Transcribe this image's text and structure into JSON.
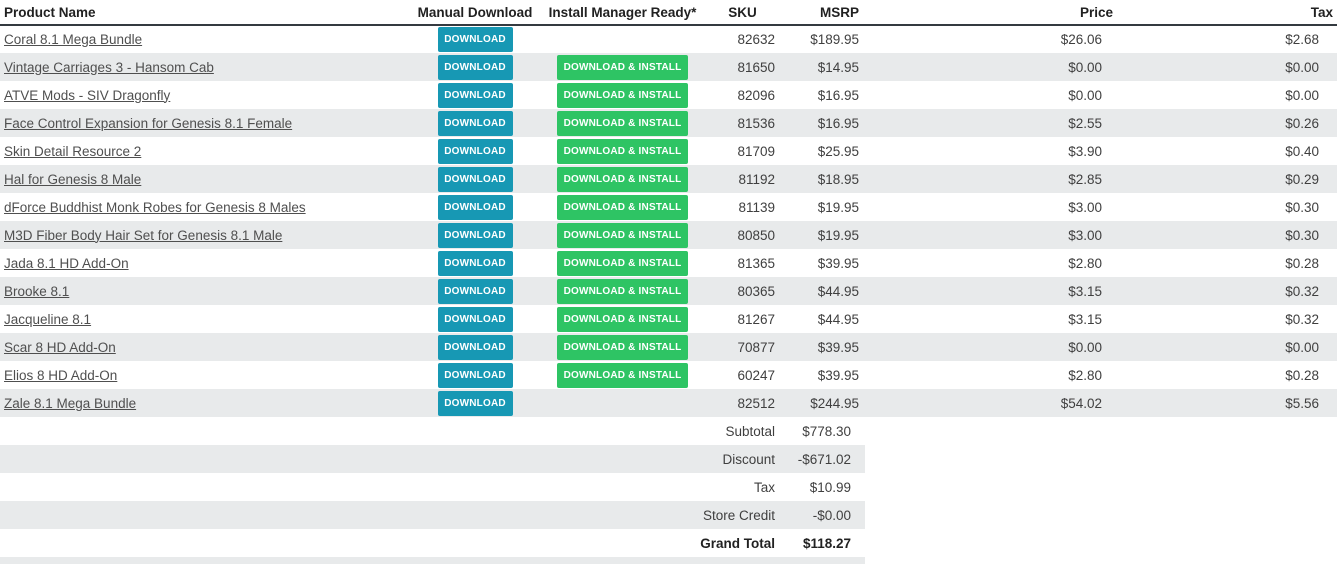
{
  "table": {
    "headers": {
      "product": "Product Name",
      "manual": "Manual Download",
      "install": "Install Manager Ready*",
      "sku": "SKU",
      "msrp": "MSRP",
      "price": "Price",
      "tax": "Tax"
    },
    "manual_button_label": "DOWNLOAD",
    "install_button_label": "DOWNLOAD & INSTALL",
    "rows": [
      {
        "product": "Coral 8.1 Mega Bundle",
        "manual_download": true,
        "install_manager": false,
        "sku": "82632",
        "msrp": "$189.95",
        "price": "$26.06",
        "tax": "$2.68"
      },
      {
        "product": "Vintage Carriages 3 - Hansom Cab",
        "manual_download": true,
        "install_manager": true,
        "sku": "81650",
        "msrp": "$14.95",
        "price": "$0.00",
        "tax": "$0.00"
      },
      {
        "product": "ATVE Mods - SIV Dragonfly",
        "manual_download": true,
        "install_manager": true,
        "sku": "82096",
        "msrp": "$16.95",
        "price": "$0.00",
        "tax": "$0.00"
      },
      {
        "product": "Face Control Expansion for Genesis 8.1 Female",
        "manual_download": true,
        "install_manager": true,
        "sku": "81536",
        "msrp": "$16.95",
        "price": "$2.55",
        "tax": "$0.26"
      },
      {
        "product": "Skin Detail Resource 2",
        "manual_download": true,
        "install_manager": true,
        "sku": "81709",
        "msrp": "$25.95",
        "price": "$3.90",
        "tax": "$0.40"
      },
      {
        "product": "Hal for Genesis 8 Male",
        "manual_download": true,
        "install_manager": true,
        "sku": "81192",
        "msrp": "$18.95",
        "price": "$2.85",
        "tax": "$0.29"
      },
      {
        "product": "dForce Buddhist Monk Robes for Genesis 8 Males",
        "manual_download": true,
        "install_manager": true,
        "sku": "81139",
        "msrp": "$19.95",
        "price": "$3.00",
        "tax": "$0.30"
      },
      {
        "product": "M3D Fiber Body Hair Set for Genesis 8.1 Male",
        "manual_download": true,
        "install_manager": true,
        "sku": "80850",
        "msrp": "$19.95",
        "price": "$3.00",
        "tax": "$0.30"
      },
      {
        "product": "Jada 8.1 HD Add-On",
        "manual_download": true,
        "install_manager": true,
        "sku": "81365",
        "msrp": "$39.95",
        "price": "$2.80",
        "tax": "$0.28"
      },
      {
        "product": "Brooke 8.1",
        "manual_download": true,
        "install_manager": true,
        "sku": "80365",
        "msrp": "$44.95",
        "price": "$3.15",
        "tax": "$0.32"
      },
      {
        "product": "Jacqueline 8.1",
        "manual_download": true,
        "install_manager": true,
        "sku": "81267",
        "msrp": "$44.95",
        "price": "$3.15",
        "tax": "$0.32"
      },
      {
        "product": "Scar 8 HD Add-On",
        "manual_download": true,
        "install_manager": true,
        "sku": "70877",
        "msrp": "$39.95",
        "price": "$0.00",
        "tax": "$0.00"
      },
      {
        "product": "Elios 8 HD Add-On",
        "manual_download": true,
        "install_manager": true,
        "sku": "60247",
        "msrp": "$39.95",
        "price": "$2.80",
        "tax": "$0.28"
      },
      {
        "product": "Zale 8.1 Mega Bundle",
        "manual_download": true,
        "install_manager": false,
        "sku": "82512",
        "msrp": "$244.95",
        "price": "$54.02",
        "tax": "$5.56"
      }
    ],
    "summary": [
      {
        "label": "Subtotal",
        "value": "$778.30",
        "bold": false
      },
      {
        "label": "Discount",
        "value": "-$671.02",
        "bold": false
      },
      {
        "label": "Tax",
        "value": "$10.99",
        "bold": false
      },
      {
        "label": "Store Credit",
        "value": "-$0.00",
        "bold": false
      },
      {
        "label": "Grand Total",
        "value": "$118.27",
        "bold": true
      }
    ]
  },
  "colors": {
    "manual_button": "#1798b4",
    "install_button": "#2ec464",
    "row_stripe": "#e8eaeb",
    "header_border": "#343a40",
    "link_text": "#4f4f4f"
  }
}
